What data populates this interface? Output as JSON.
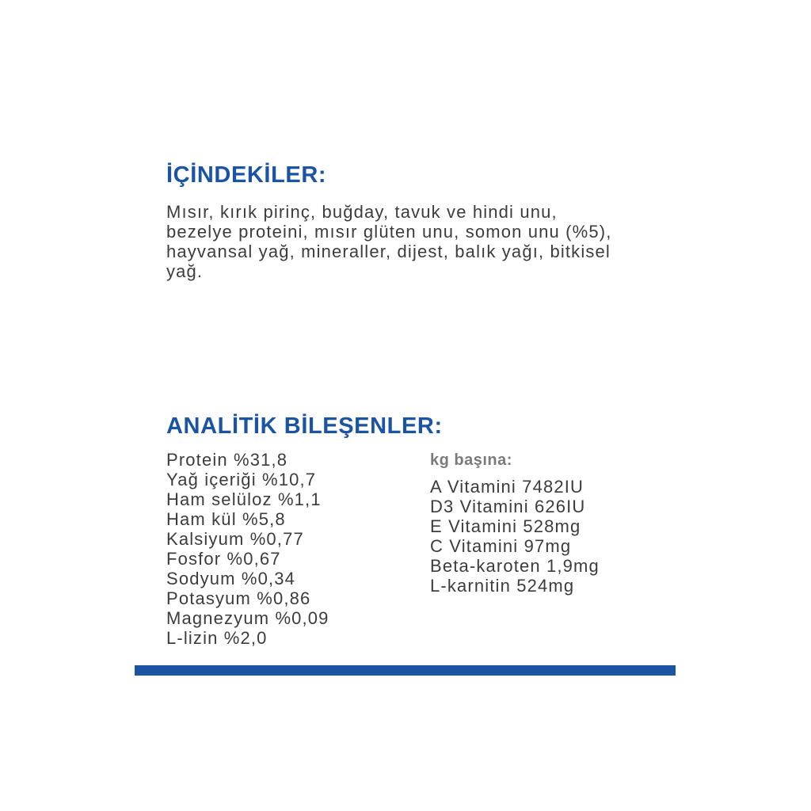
{
  "ingredients": {
    "title": "İÇİNDEKİLER:",
    "lines": [
      "Mısır, kırık pirinç, buğday, tavuk ve hindi unu,",
      "bezelye proteini, mısır glüten unu, somon unu (%5),",
      "hayvansal yağ, mineraller, dijest, balık yağı, bitkisel",
      "yağ."
    ]
  },
  "analysis": {
    "title": "ANALİTİK BİLEŞENLER:",
    "left": [
      "Protein %31,8",
      "Yağ içeriği %10,7",
      "Ham selüloz %1,1",
      "Ham kül %5,8",
      "Kalsiyum %0,77",
      "Fosfor %0,67",
      "Sodyum %0,34",
      "Potasyum %0,86",
      "Magnezyum %0,09",
      "L-lizin %2,0"
    ],
    "per_kg_label": "kg başına:",
    "right": [
      "A Vitamini 7482IU",
      "D3 Vitamini 626IU",
      "E Vitamini 528mg",
      "C Vitamini 97mg",
      "Beta-karoten 1,9mg",
      "L-karnitin 524mg"
    ]
  },
  "colors": {
    "accent": "#1a54a3",
    "text": "#3c3c3c"
  }
}
